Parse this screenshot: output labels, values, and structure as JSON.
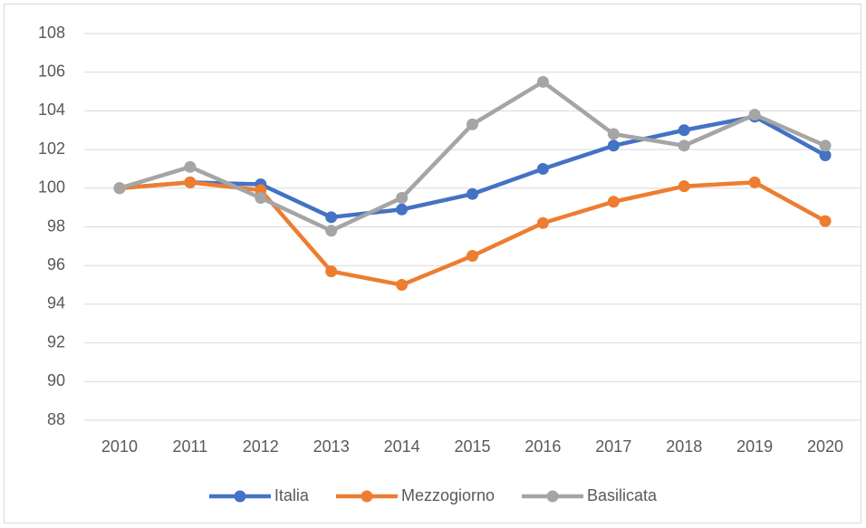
{
  "chart_data": {
    "type": "line",
    "categories": [
      "2010",
      "2011",
      "2012",
      "2013",
      "2014",
      "2015",
      "2016",
      "2017",
      "2018",
      "2019",
      "2020"
    ],
    "series": [
      {
        "name": "Italia",
        "color": "#4472c4",
        "values": [
          100,
          100.3,
          100.2,
          98.5,
          98.9,
          99.7,
          101.0,
          102.2,
          103.0,
          103.7,
          101.7
        ]
      },
      {
        "name": "Mezzogiorno",
        "color": "#ed7d31",
        "values": [
          100,
          100.3,
          99.9,
          95.7,
          95.0,
          96.5,
          98.2,
          99.3,
          100.1,
          100.3,
          98.3
        ]
      },
      {
        "name": "Basilicata",
        "color": "#a5a5a5",
        "values": [
          100,
          101.1,
          99.5,
          97.8,
          99.5,
          103.3,
          105.5,
          102.8,
          102.2,
          103.8,
          102.2
        ]
      }
    ],
    "ylim": [
      88,
      108
    ],
    "yticks": [
      88,
      90,
      92,
      94,
      96,
      98,
      100,
      102,
      104,
      106,
      108
    ],
    "grid": true,
    "legend": "bottom"
  }
}
